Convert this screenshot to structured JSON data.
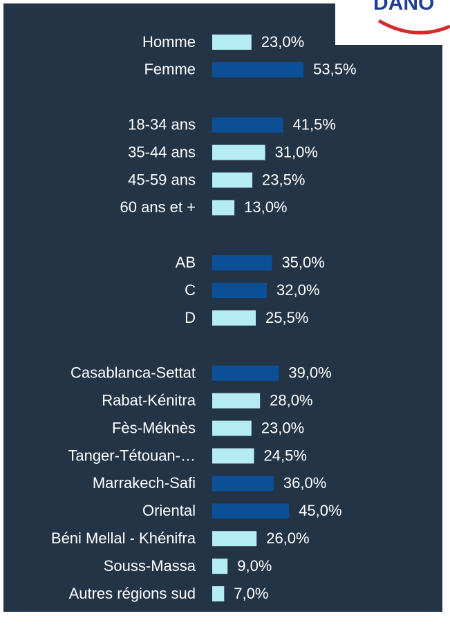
{
  "chart_data": {
    "type": "bar",
    "orientation": "horizontal",
    "logo_text": "DANO",
    "categories": [
      "Homme",
      "Femme",
      null,
      "18-34 ans",
      "35-44 ans",
      "45-59 ans",
      "60 ans et +",
      null,
      "AB",
      "C",
      "D",
      null,
      "Casablanca-Settat",
      "Rabat-Kénitra",
      "Fès-Méknès",
      "Tanger-Tétouan-…",
      "Marrakech-Safi",
      "Oriental",
      "Béni Mellal - Khénifra",
      "Souss-Massa",
      "Autres régions sud"
    ],
    "values": [
      23.0,
      53.5,
      null,
      41.5,
      31.0,
      23.5,
      13.0,
      null,
      35.0,
      32.0,
      25.5,
      null,
      39.0,
      28.0,
      23.0,
      24.5,
      36.0,
      45.0,
      26.0,
      9.0,
      7.0
    ],
    "value_labels": [
      "23,0%",
      "53,5%",
      null,
      "41,5%",
      "31,0%",
      "23,5%",
      "13,0%",
      null,
      "35,0%",
      "32,0%",
      "25,5%",
      null,
      "39,0%",
      "28,0%",
      "23,0%",
      "24,5%",
      "36,0%",
      "45,0%",
      "26,0%",
      "9,0%",
      "7,0%"
    ],
    "colors": [
      "#b5ebf3",
      "#0b4f96",
      null,
      "#0b4f96",
      "#b5ebf3",
      "#b5ebf3",
      "#b5ebf3",
      null,
      "#0b4f96",
      "#0b4f96",
      "#b5ebf3",
      null,
      "#0b4f96",
      "#b5ebf3",
      "#b5ebf3",
      "#b5ebf3",
      "#0b4f96",
      "#0b4f96",
      "#b5ebf3",
      "#b5ebf3",
      "#b5ebf3"
    ]
  }
}
